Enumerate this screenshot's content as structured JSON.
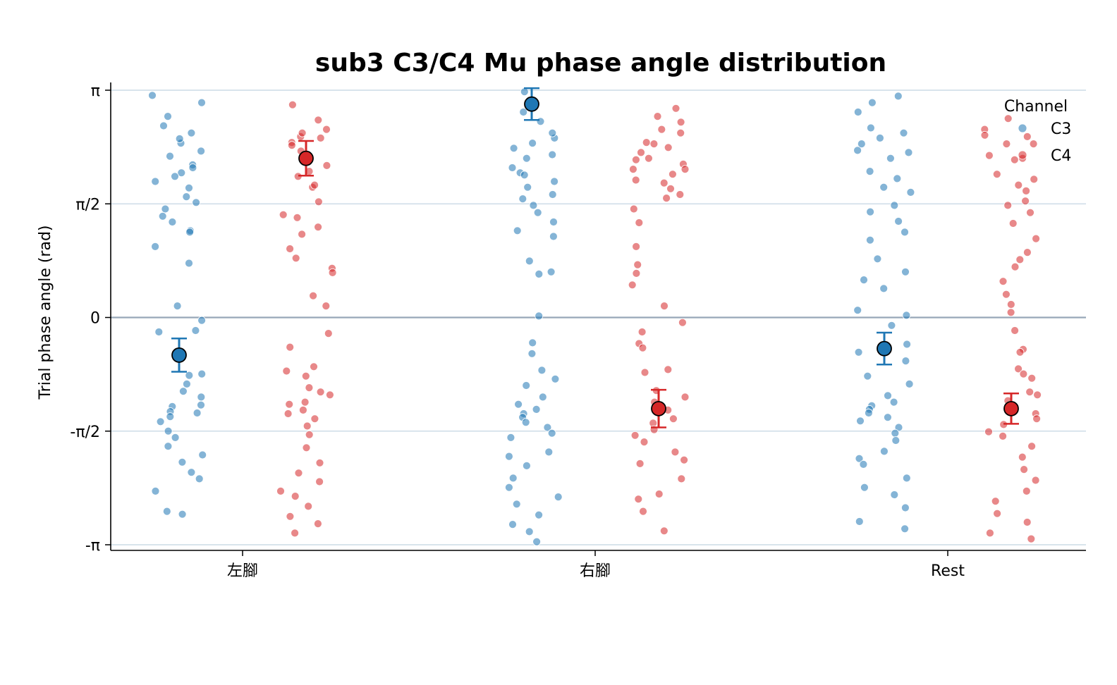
{
  "chart_data": {
    "type": "scatter",
    "title": "sub3 C3/C4 Mu phase angle distribution",
    "xlabel": "",
    "ylabel": "Trial phase angle (rad)",
    "ylim": [
      -3.1416,
      3.1416
    ],
    "yticks": [
      {
        "value": -3.1416,
        "label": "-π"
      },
      {
        "value": -1.5708,
        "label": "-π/2"
      },
      {
        "value": 0,
        "label": "0"
      },
      {
        "value": 1.5708,
        "label": "π/2"
      },
      {
        "value": 3.1416,
        "label": "π"
      }
    ],
    "grid": true,
    "categories": [
      "左腳",
      "右腳",
      "Rest"
    ],
    "legend": {
      "title": "Channel",
      "position": "top-right",
      "entries": [
        "C3",
        "C4"
      ]
    },
    "colors": {
      "C3": "#1f77b4",
      "C4": "#d62728"
    },
    "series": [
      {
        "name": "C3",
        "points": [
          [
            0,
            3.07
          ],
          [
            0,
            2.97
          ],
          [
            0,
            2.78
          ],
          [
            0,
            2.65
          ],
          [
            0,
            2.55
          ],
          [
            0,
            2.41
          ],
          [
            0,
            2.23
          ],
          [
            0,
            2.11
          ],
          [
            0,
            2.07
          ],
          [
            0,
            2.0
          ],
          [
            0,
            1.79
          ],
          [
            0,
            1.67
          ],
          [
            0,
            1.59
          ],
          [
            0,
            1.5
          ],
          [
            0,
            1.32
          ],
          [
            0,
            1.2
          ],
          [
            0,
            1.18
          ],
          [
            0,
            0.98
          ],
          [
            0,
            0.75
          ],
          [
            0,
            0.16
          ],
          [
            0,
            -0.04
          ],
          [
            0,
            -0.18
          ],
          [
            0,
            -0.2
          ],
          [
            0,
            -0.53
          ],
          [
            0,
            -0.78
          ],
          [
            0,
            -0.8
          ],
          [
            0,
            -0.92
          ],
          [
            0,
            -1.02
          ],
          [
            0,
            -1.1
          ],
          [
            0,
            -1.21
          ],
          [
            0,
            -1.23
          ],
          [
            0,
            -1.3
          ],
          [
            0,
            -1.32
          ],
          [
            0,
            -1.37
          ],
          [
            0,
            -1.44
          ],
          [
            0,
            -1.57
          ],
          [
            0,
            -1.66
          ],
          [
            0,
            -1.78
          ],
          [
            0,
            -1.9
          ],
          [
            0,
            -2.0
          ],
          [
            0,
            -2.14
          ],
          [
            0,
            -2.23
          ],
          [
            0,
            -2.4
          ],
          [
            0,
            -2.68
          ],
          [
            0,
            -2.72
          ],
          [
            0,
            2.47
          ],
          [
            0,
            1.95
          ],
          [
            0,
            1.4
          ],
          [
            0,
            2.3
          ],
          [
            0,
            1.88
          ],
          [
            1,
            3.12
          ],
          [
            1,
            2.84
          ],
          [
            1,
            2.71
          ],
          [
            1,
            2.48
          ],
          [
            1,
            2.41
          ],
          [
            1,
            2.34
          ],
          [
            1,
            2.2
          ],
          [
            1,
            2.0
          ],
          [
            1,
            1.97
          ],
          [
            1,
            1.8
          ],
          [
            1,
            1.64
          ],
          [
            1,
            1.55
          ],
          [
            1,
            1.45
          ],
          [
            1,
            1.2
          ],
          [
            1,
            1.12
          ],
          [
            1,
            0.78
          ],
          [
            1,
            0.63
          ],
          [
            1,
            0.6
          ],
          [
            1,
            0.02
          ],
          [
            1,
            -0.35
          ],
          [
            1,
            -0.5
          ],
          [
            1,
            -0.73
          ],
          [
            1,
            -0.85
          ],
          [
            1,
            -0.94
          ],
          [
            1,
            -1.1
          ],
          [
            1,
            -1.2
          ],
          [
            1,
            -1.27
          ],
          [
            1,
            -1.33
          ],
          [
            1,
            -1.38
          ],
          [
            1,
            -1.45
          ],
          [
            1,
            -1.52
          ],
          [
            1,
            -1.6
          ],
          [
            1,
            -1.66
          ],
          [
            1,
            -1.86
          ],
          [
            1,
            -1.92
          ],
          [
            1,
            -2.05
          ],
          [
            1,
            -2.22
          ],
          [
            1,
            -2.35
          ],
          [
            1,
            -2.48
          ],
          [
            1,
            -2.58
          ],
          [
            1,
            -2.73
          ],
          [
            1,
            -2.86
          ],
          [
            1,
            -2.96
          ],
          [
            1,
            -3.1
          ],
          [
            1,
            2.07
          ],
          [
            1,
            1.88
          ],
          [
            1,
            2.25
          ],
          [
            1,
            1.7
          ],
          [
            1,
            2.55
          ],
          [
            1,
            1.32
          ],
          [
            2,
            3.06
          ],
          [
            2,
            2.97
          ],
          [
            2,
            2.84
          ],
          [
            2,
            2.62
          ],
          [
            2,
            2.4
          ],
          [
            2,
            2.31
          ],
          [
            2,
            2.2
          ],
          [
            2,
            2.02
          ],
          [
            2,
            1.92
          ],
          [
            2,
            1.8
          ],
          [
            2,
            1.55
          ],
          [
            2,
            1.46
          ],
          [
            2,
            1.18
          ],
          [
            2,
            1.07
          ],
          [
            2,
            0.81
          ],
          [
            2,
            0.63
          ],
          [
            2,
            0.52
          ],
          [
            2,
            0.4
          ],
          [
            2,
            0.1
          ],
          [
            2,
            0.03
          ],
          [
            2,
            -0.11
          ],
          [
            2,
            -0.37
          ],
          [
            2,
            -0.48
          ],
          [
            2,
            -0.6
          ],
          [
            2,
            -0.81
          ],
          [
            2,
            -0.92
          ],
          [
            2,
            -1.08
          ],
          [
            2,
            -1.17
          ],
          [
            2,
            -1.22
          ],
          [
            2,
            -1.27
          ],
          [
            2,
            -1.32
          ],
          [
            2,
            -1.38
          ],
          [
            2,
            -1.43
          ],
          [
            2,
            -1.52
          ],
          [
            2,
            -1.6
          ],
          [
            2,
            -1.7
          ],
          [
            2,
            -1.85
          ],
          [
            2,
            -1.95
          ],
          [
            2,
            -2.03
          ],
          [
            2,
            -2.22
          ],
          [
            2,
            -2.35
          ],
          [
            2,
            -2.45
          ],
          [
            2,
            -2.63
          ],
          [
            2,
            -2.82
          ],
          [
            2,
            -2.92
          ],
          [
            2,
            2.55
          ],
          [
            2,
            1.73
          ],
          [
            2,
            2.28
          ],
          [
            2,
            1.33
          ],
          [
            2,
            2.48
          ]
        ],
        "summary": [
          {
            "category": "左腳",
            "mean": -0.52,
            "error": 0.23
          },
          {
            "category": "右腳",
            "mean": 2.95,
            "error": 0.22
          },
          {
            "category": "Rest",
            "mean": -0.43,
            "error": 0.22
          }
        ]
      },
      {
        "name": "C4",
        "points": [
          [
            0,
            2.94
          ],
          [
            0,
            2.73
          ],
          [
            0,
            2.6
          ],
          [
            0,
            2.5
          ],
          [
            0,
            2.42
          ],
          [
            0,
            2.3
          ],
          [
            0,
            2.1
          ],
          [
            0,
            2.02
          ],
          [
            0,
            1.95
          ],
          [
            0,
            1.8
          ],
          [
            0,
            1.6
          ],
          [
            0,
            1.38
          ],
          [
            0,
            1.25
          ],
          [
            0,
            1.15
          ],
          [
            0,
            0.95
          ],
          [
            0,
            0.82
          ],
          [
            0,
            0.68
          ],
          [
            0,
            0.62
          ],
          [
            0,
            0.3
          ],
          [
            0,
            0.16
          ],
          [
            0,
            -0.22
          ],
          [
            0,
            -0.41
          ],
          [
            0,
            -0.68
          ],
          [
            0,
            -0.74
          ],
          [
            0,
            -0.81
          ],
          [
            0,
            -0.97
          ],
          [
            0,
            -1.03
          ],
          [
            0,
            -1.07
          ],
          [
            0,
            -1.17
          ],
          [
            0,
            -1.2
          ],
          [
            0,
            -1.28
          ],
          [
            0,
            -1.33
          ],
          [
            0,
            -1.4
          ],
          [
            0,
            -1.5
          ],
          [
            0,
            -1.62
          ],
          [
            0,
            -1.8
          ],
          [
            0,
            -2.01
          ],
          [
            0,
            -2.15
          ],
          [
            0,
            -2.27
          ],
          [
            0,
            -2.4
          ],
          [
            0,
            -2.47
          ],
          [
            0,
            -2.61
          ],
          [
            0,
            -2.75
          ],
          [
            0,
            -2.85
          ],
          [
            0,
            -2.98
          ],
          [
            0,
            2.38
          ],
          [
            0,
            1.83
          ],
          [
            0,
            2.55
          ],
          [
            0,
            1.42
          ],
          [
            0,
            2.48
          ],
          [
            1,
            2.89
          ],
          [
            1,
            2.7
          ],
          [
            1,
            2.55
          ],
          [
            1,
            2.35
          ],
          [
            1,
            2.12
          ],
          [
            1,
            2.05
          ],
          [
            1,
            1.98
          ],
          [
            1,
            1.86
          ],
          [
            1,
            1.78
          ],
          [
            1,
            1.7
          ],
          [
            1,
            1.5
          ],
          [
            1,
            1.31
          ],
          [
            1,
            0.98
          ],
          [
            1,
            0.73
          ],
          [
            1,
            0.61
          ],
          [
            1,
            0.45
          ],
          [
            1,
            0.16
          ],
          [
            1,
            -0.07
          ],
          [
            1,
            -0.2
          ],
          [
            1,
            -0.36
          ],
          [
            1,
            -0.42
          ],
          [
            1,
            -0.72
          ],
          [
            1,
            -0.76
          ],
          [
            1,
            -1.01
          ],
          [
            1,
            -1.1
          ],
          [
            1,
            -1.17
          ],
          [
            1,
            -1.28
          ],
          [
            1,
            -1.4
          ],
          [
            1,
            -1.46
          ],
          [
            1,
            -1.55
          ],
          [
            1,
            -1.63
          ],
          [
            1,
            -1.72
          ],
          [
            1,
            -1.86
          ],
          [
            1,
            -1.97
          ],
          [
            1,
            -2.02
          ],
          [
            1,
            -2.23
          ],
          [
            1,
            -2.44
          ],
          [
            1,
            -2.51
          ],
          [
            1,
            -2.68
          ],
          [
            1,
            -2.95
          ],
          [
            1,
            2.28
          ],
          [
            1,
            2.18
          ],
          [
            1,
            2.42
          ],
          [
            1,
            1.65
          ],
          [
            1,
            2.6
          ],
          [
            1,
            2.78
          ],
          [
            1,
            2.05
          ],
          [
            1,
            1.9
          ],
          [
            1,
            2.4
          ],
          [
            1,
            2.2
          ],
          [
            2,
            2.6
          ],
          [
            2,
            2.52
          ],
          [
            2,
            2.4
          ],
          [
            2,
            2.24
          ],
          [
            2,
            1.98
          ],
          [
            2,
            1.91
          ],
          [
            2,
            1.75
          ],
          [
            2,
            1.61
          ],
          [
            2,
            1.55
          ],
          [
            2,
            1.45
          ],
          [
            2,
            1.09
          ],
          [
            2,
            0.9
          ],
          [
            2,
            0.8
          ],
          [
            2,
            0.7
          ],
          [
            2,
            0.5
          ],
          [
            2,
            0.32
          ],
          [
            2,
            0.18
          ],
          [
            2,
            0.07
          ],
          [
            2,
            -0.18
          ],
          [
            2,
            -0.44
          ],
          [
            2,
            -0.48
          ],
          [
            2,
            -0.71
          ],
          [
            2,
            -0.78
          ],
          [
            2,
            -0.84
          ],
          [
            2,
            -1.03
          ],
          [
            2,
            -1.07
          ],
          [
            2,
            -1.15
          ],
          [
            2,
            -1.27
          ],
          [
            2,
            -1.33
          ],
          [
            2,
            -1.4
          ],
          [
            2,
            -1.48
          ],
          [
            2,
            -1.58
          ],
          [
            2,
            -1.64
          ],
          [
            2,
            -1.78
          ],
          [
            2,
            -1.93
          ],
          [
            2,
            -2.1
          ],
          [
            2,
            -2.25
          ],
          [
            2,
            -2.4
          ],
          [
            2,
            -2.54
          ],
          [
            2,
            -2.71
          ],
          [
            2,
            -2.83
          ],
          [
            2,
            -2.98
          ],
          [
            2,
            2.4
          ],
          [
            2,
            2.5
          ],
          [
            2,
            1.83
          ],
          [
            2,
            2.2
          ],
          [
            2,
            1.3
          ],
          [
            2,
            2.75
          ],
          [
            2,
            -3.06
          ],
          [
            2,
            2.18
          ]
        ],
        "summary": [
          {
            "category": "左腳",
            "mean": 2.2,
            "error": 0.24
          },
          {
            "category": "右腳",
            "mean": -1.26,
            "error": 0.26
          },
          {
            "category": "Rest",
            "mean": -1.26,
            "error": 0.21
          }
        ]
      }
    ]
  }
}
